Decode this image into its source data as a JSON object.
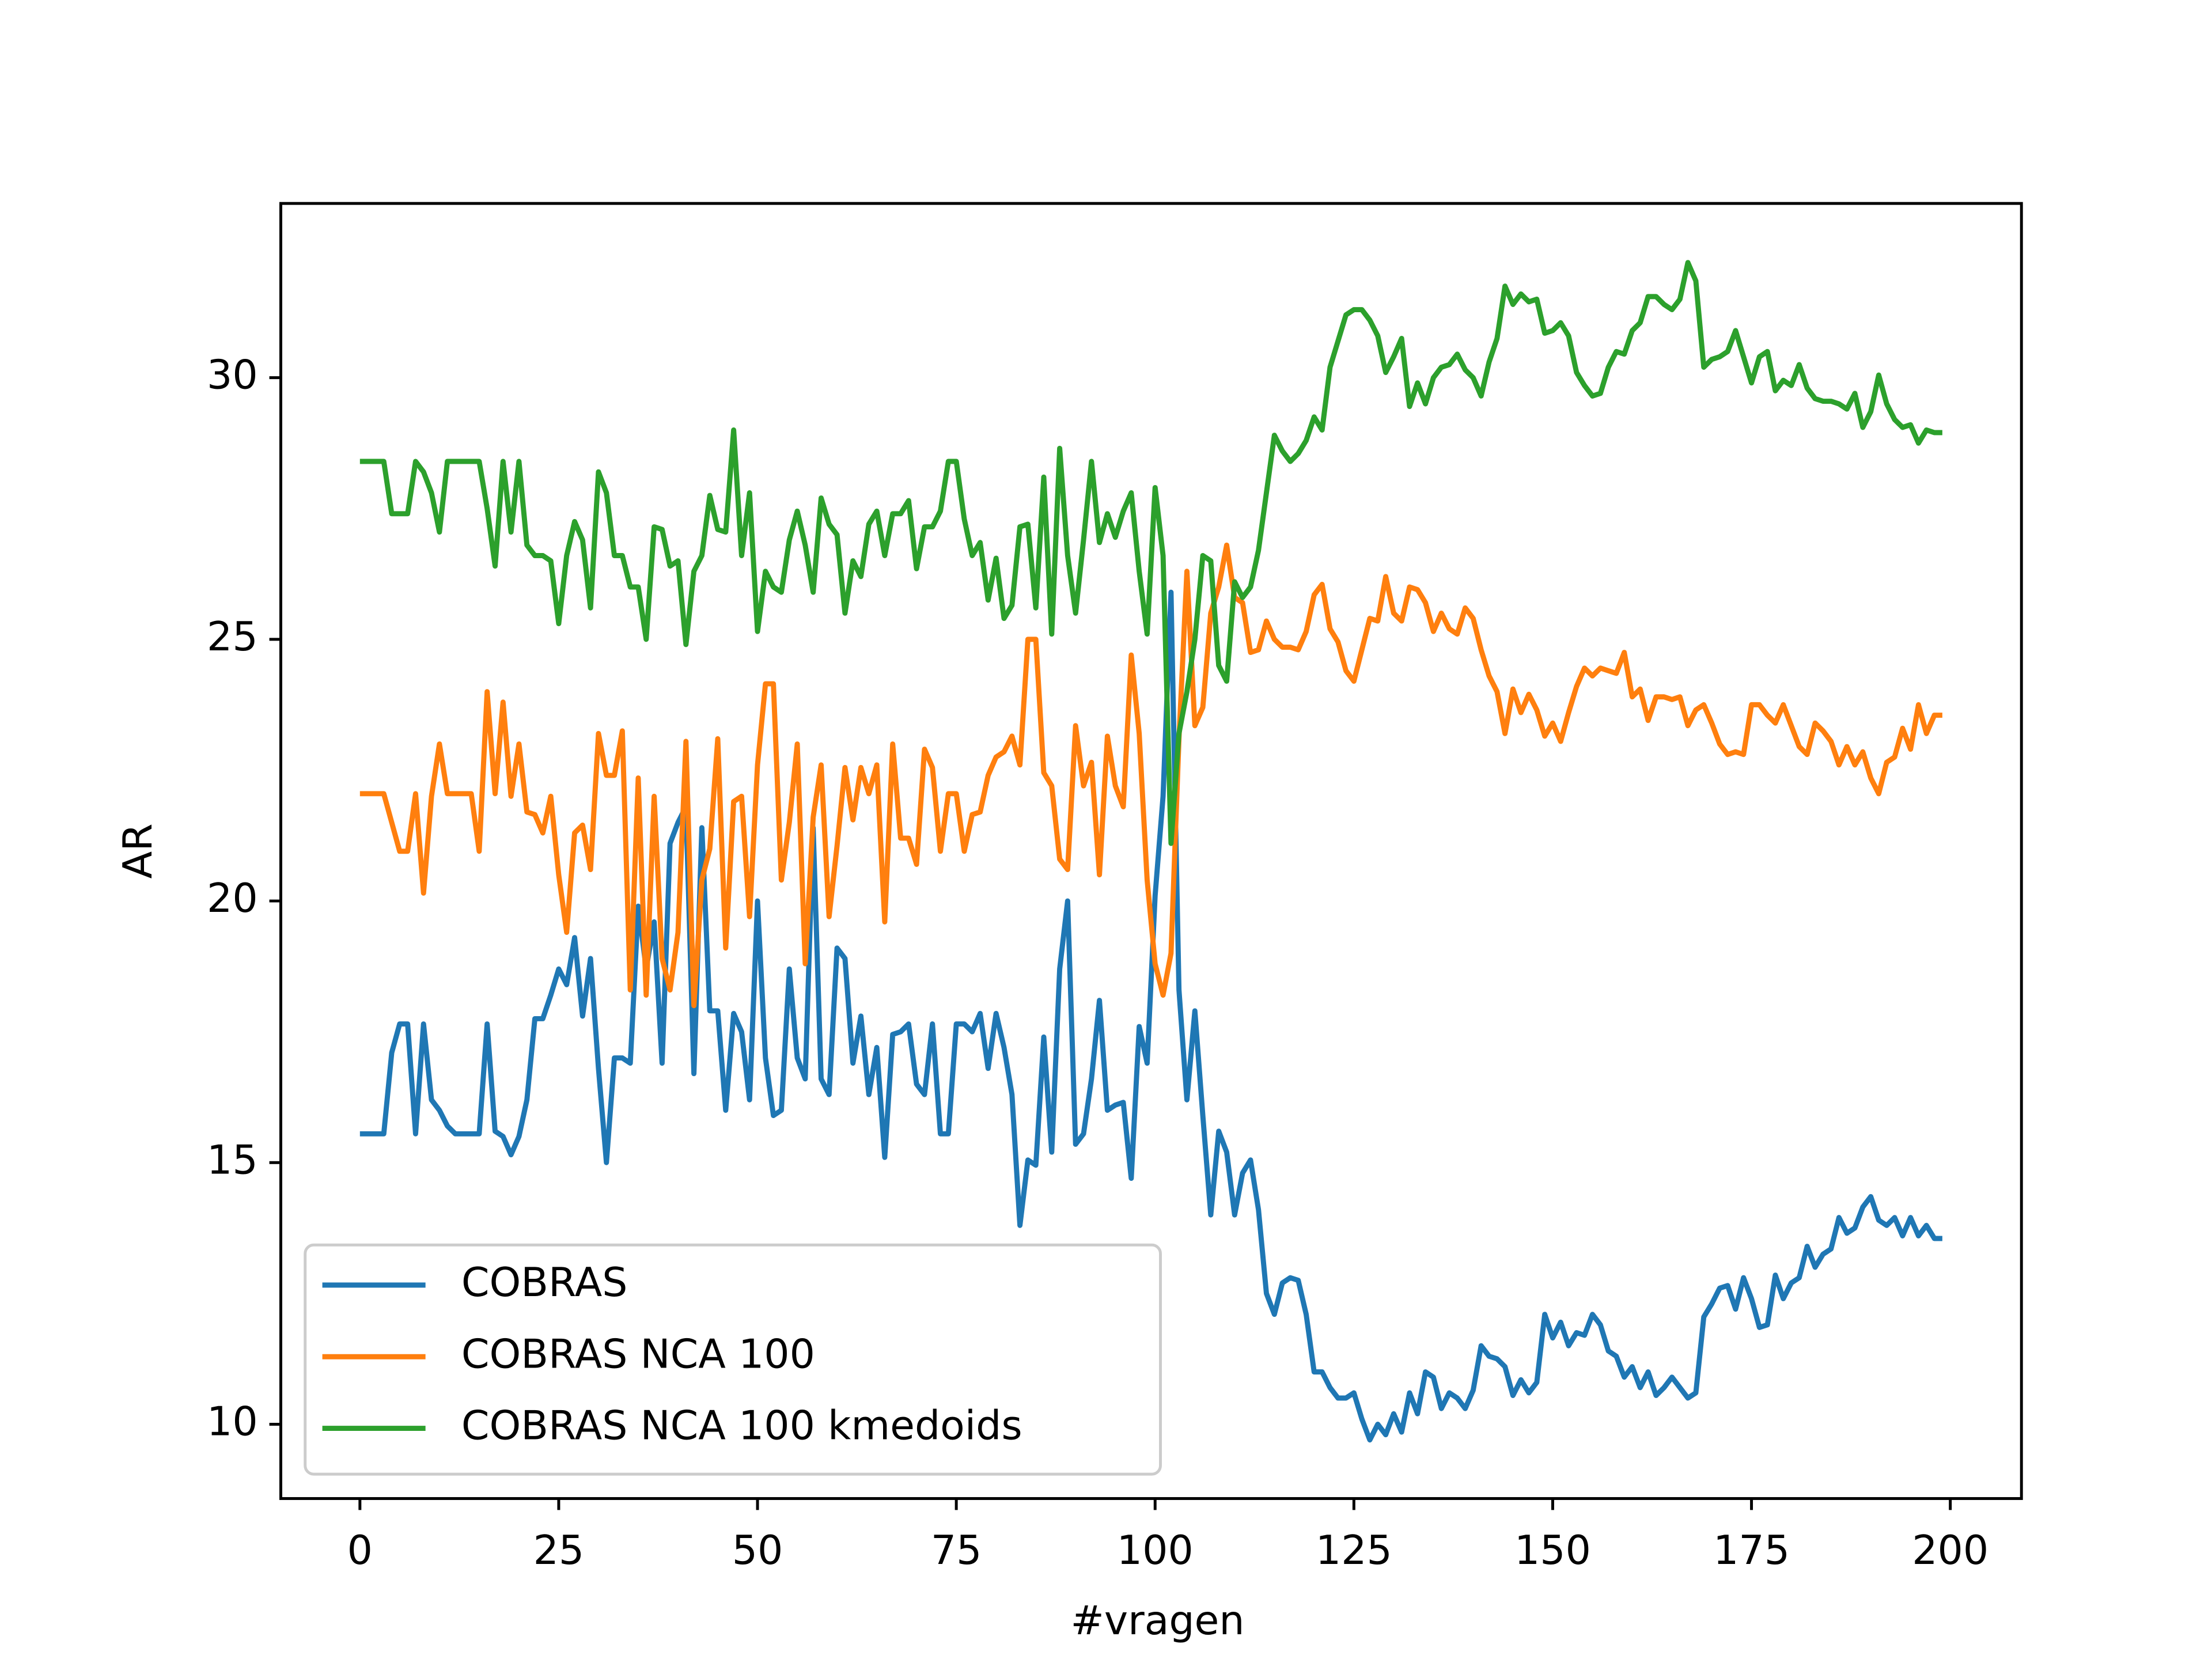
{
  "chart_data": {
    "type": "line",
    "xlabel": "#vragen",
    "ylabel": "AR",
    "x": [
      0,
      1,
      2,
      3,
      4,
      5,
      6,
      7,
      8,
      9,
      10,
      11,
      12,
      13,
      14,
      15,
      16,
      17,
      18,
      19,
      20,
      21,
      22,
      23,
      24,
      25,
      26,
      27,
      28,
      29,
      30,
      31,
      32,
      33,
      34,
      35,
      36,
      37,
      38,
      39,
      40,
      41,
      42,
      43,
      44,
      45,
      46,
      47,
      48,
      49,
      50,
      51,
      52,
      53,
      54,
      55,
      56,
      57,
      58,
      59,
      60,
      61,
      62,
      63,
      64,
      65,
      66,
      67,
      68,
      69,
      70,
      71,
      72,
      73,
      74,
      75,
      76,
      77,
      78,
      79,
      80,
      81,
      82,
      83,
      84,
      85,
      86,
      87,
      88,
      89,
      90,
      91,
      92,
      93,
      94,
      95,
      96,
      97,
      98,
      99,
      100,
      101,
      102,
      103,
      104,
      105,
      106,
      107,
      108,
      109,
      110,
      111,
      112,
      113,
      114,
      115,
      116,
      117,
      118,
      119,
      120,
      121,
      122,
      123,
      124,
      125,
      126,
      127,
      128,
      129,
      130,
      131,
      132,
      133,
      134,
      135,
      136,
      137,
      138,
      139,
      140,
      141,
      142,
      143,
      144,
      145,
      146,
      147,
      148,
      149,
      150,
      151,
      152,
      153,
      154,
      155,
      156,
      157,
      158,
      159,
      160,
      161,
      162,
      163,
      164,
      165,
      166,
      167,
      168,
      169,
      170,
      171,
      172,
      173,
      174,
      175,
      176,
      177,
      178,
      179,
      180,
      181,
      182,
      183,
      184,
      185,
      186,
      187,
      188,
      189,
      190,
      191,
      192,
      193,
      194,
      195,
      196,
      197,
      198,
      199
    ],
    "series": [
      {
        "name": "COBRAS",
        "color": "#1f77b4",
        "values": [
          15.55,
          15.55,
          15.55,
          15.55,
          17.1,
          17.65,
          17.65,
          15.55,
          17.65,
          16.2,
          16.0,
          15.7,
          15.55,
          15.55,
          15.55,
          15.55,
          17.65,
          15.6,
          15.5,
          15.15,
          15.5,
          16.2,
          17.75,
          17.75,
          18.2,
          18.7,
          18.4,
          19.3,
          17.8,
          18.9,
          16.8,
          15.0,
          17.0,
          17.0,
          16.9,
          19.9,
          18.7,
          19.6,
          16.9,
          21.1,
          21.5,
          21.8,
          16.7,
          21.4,
          17.9,
          17.9,
          16.0,
          17.85,
          17.5,
          16.2,
          20.0,
          17.0,
          15.9,
          16.0,
          18.7,
          17.0,
          16.6,
          21.4,
          16.6,
          16.3,
          19.1,
          18.9,
          16.9,
          17.8,
          16.3,
          17.2,
          15.1,
          17.45,
          17.5,
          17.65,
          16.5,
          16.3,
          17.65,
          15.55,
          15.55,
          17.65,
          17.65,
          17.5,
          17.85,
          16.8,
          17.85,
          17.2,
          16.3,
          13.8,
          15.05,
          14.95,
          17.4,
          15.2,
          18.7,
          20.0,
          15.35,
          15.55,
          16.6,
          18.1,
          16.0,
          16.1,
          16.15,
          14.7,
          17.6,
          16.9,
          20.1,
          22.0,
          25.9,
          18.3,
          16.2,
          17.9,
          15.9,
          14.0,
          15.6,
          15.2,
          14.0,
          14.8,
          15.05,
          14.1,
          12.5,
          12.1,
          12.7,
          12.8,
          12.75,
          12.1,
          11.0,
          11.0,
          10.7,
          10.5,
          10.5,
          10.6,
          10.1,
          9.7,
          10.0,
          9.8,
          10.2,
          9.85,
          10.6,
          10.2,
          11.0,
          10.9,
          10.3,
          10.6,
          10.5,
          10.3,
          10.65,
          11.5,
          11.3,
          11.25,
          11.1,
          10.55,
          10.85,
          10.6,
          10.8,
          12.1,
          11.65,
          11.95,
          11.5,
          11.75,
          11.7,
          12.1,
          11.9,
          11.4,
          11.3,
          10.9,
          11.1,
          10.7,
          11.0,
          10.55,
          10.7,
          10.9,
          10.7,
          10.5,
          10.6,
          12.05,
          12.3,
          12.6,
          12.65,
          12.2,
          12.8,
          12.4,
          11.85,
          11.9,
          12.85,
          12.4,
          12.7,
          12.8,
          13.4,
          13.0,
          13.25,
          13.35,
          13.95,
          13.65,
          13.75,
          14.15,
          14.35,
          13.9,
          13.8,
          13.95,
          13.6,
          13.95,
          13.6,
          13.8,
          13.55,
          13.55
        ]
      },
      {
        "name": "COBRAS NCA 100",
        "color": "#ff7f0e",
        "values": [
          22.05,
          22.05,
          22.05,
          22.05,
          21.5,
          20.95,
          20.95,
          22.05,
          20.15,
          22.0,
          23.0,
          22.05,
          22.05,
          22.05,
          22.05,
          20.95,
          24.0,
          22.05,
          23.8,
          22.0,
          23.0,
          21.7,
          21.65,
          21.3,
          22.0,
          20.5,
          19.4,
          21.3,
          21.45,
          20.6,
          23.2,
          22.4,
          22.4,
          23.25,
          18.3,
          22.35,
          18.2,
          22.0,
          18.9,
          18.3,
          19.4,
          23.05,
          18.0,
          20.4,
          21.0,
          23.1,
          19.1,
          21.9,
          22.0,
          19.7,
          22.6,
          24.15,
          24.15,
          20.4,
          21.5,
          23.0,
          18.8,
          21.6,
          22.6,
          19.7,
          21.05,
          22.55,
          21.55,
          22.55,
          22.05,
          22.6,
          19.6,
          23.0,
          21.2,
          21.2,
          20.7,
          22.9,
          22.55,
          20.95,
          22.05,
          22.05,
          20.95,
          21.65,
          21.7,
          22.4,
          22.75,
          22.85,
          23.15,
          22.6,
          25.0,
          25.0,
          22.45,
          22.2,
          20.8,
          20.6,
          23.35,
          22.2,
          22.65,
          20.5,
          23.15,
          22.2,
          21.8,
          24.7,
          23.2,
          20.4,
          18.8,
          18.2,
          19.0,
          23.1,
          26.3,
          23.35,
          23.7,
          25.5,
          26.0,
          26.8,
          25.8,
          25.7,
          24.75,
          24.8,
          25.35,
          25.0,
          24.85,
          24.85,
          24.8,
          25.15,
          25.85,
          26.05,
          25.2,
          24.95,
          24.4,
          24.2,
          24.8,
          25.4,
          25.35,
          26.2,
          25.5,
          25.35,
          26.0,
          25.95,
          25.7,
          25.15,
          25.5,
          25.2,
          25.1,
          25.6,
          25.4,
          24.8,
          24.3,
          24.0,
          23.2,
          24.05,
          23.6,
          23.95,
          23.65,
          23.15,
          23.4,
          23.05,
          23.6,
          24.1,
          24.45,
          24.3,
          24.45,
          24.4,
          24.35,
          24.75,
          23.9,
          24.05,
          23.45,
          23.9,
          23.9,
          23.85,
          23.9,
          23.35,
          23.65,
          23.75,
          23.4,
          23.0,
          22.8,
          22.85,
          22.8,
          23.75,
          23.75,
          23.55,
          23.4,
          23.75,
          23.35,
          22.95,
          22.8,
          23.4,
          23.25,
          23.05,
          22.6,
          22.95,
          22.6,
          22.85,
          22.35,
          22.05,
          22.65,
          22.75,
          23.3,
          22.9,
          23.75,
          23.2,
          23.55,
          23.55
        ]
      },
      {
        "name": "COBRAS NCA 100 kmedoids",
        "color": "#2ca02c",
        "values": [
          28.4,
          28.4,
          28.4,
          28.4,
          27.4,
          27.4,
          27.4,
          28.4,
          28.2,
          27.8,
          27.05,
          28.4,
          28.4,
          28.4,
          28.4,
          28.4,
          27.5,
          26.4,
          28.4,
          27.05,
          28.4,
          26.8,
          26.6,
          26.6,
          26.5,
          25.3,
          26.6,
          27.25,
          26.9,
          25.6,
          28.2,
          27.8,
          26.6,
          26.6,
          26.0,
          26.0,
          25.0,
          27.15,
          27.1,
          26.4,
          26.5,
          24.9,
          26.3,
          26.6,
          27.75,
          27.1,
          27.05,
          29.0,
          26.6,
          27.8,
          25.15,
          26.3,
          26.0,
          25.9,
          26.9,
          27.45,
          26.8,
          25.9,
          27.7,
          27.2,
          27.0,
          25.5,
          26.5,
          26.2,
          27.2,
          27.45,
          26.6,
          27.4,
          27.4,
          27.65,
          26.35,
          27.15,
          27.15,
          27.45,
          28.4,
          28.4,
          27.3,
          26.6,
          26.85,
          25.75,
          26.55,
          25.4,
          25.65,
          27.15,
          27.2,
          25.6,
          28.1,
          25.1,
          28.65,
          26.6,
          25.5,
          26.9,
          28.4,
          26.85,
          27.4,
          26.95,
          27.45,
          27.8,
          26.3,
          25.1,
          27.9,
          26.6,
          21.1,
          23.2,
          24.0,
          25.0,
          26.6,
          26.5,
          24.5,
          24.2,
          26.1,
          25.8,
          26.0,
          26.7,
          27.8,
          28.9,
          28.6,
          28.4,
          28.55,
          28.8,
          29.25,
          29.0,
          30.2,
          30.7,
          31.2,
          31.3,
          31.3,
          31.1,
          30.8,
          30.1,
          30.4,
          30.75,
          29.45,
          29.9,
          29.5,
          30.0,
          30.2,
          30.25,
          30.45,
          30.15,
          30.0,
          29.65,
          30.3,
          30.75,
          31.75,
          31.4,
          31.6,
          31.45,
          31.5,
          30.85,
          30.9,
          31.05,
          30.8,
          30.1,
          29.85,
          29.65,
          29.7,
          30.2,
          30.5,
          30.45,
          30.9,
          31.05,
          31.55,
          31.55,
          31.4,
          31.3,
          31.5,
          32.2,
          31.85,
          30.2,
          30.35,
          30.4,
          30.5,
          30.9,
          30.4,
          29.9,
          30.4,
          30.5,
          29.75,
          29.95,
          29.85,
          30.25,
          29.8,
          29.6,
          29.55,
          29.55,
          29.5,
          29.4,
          29.7,
          29.05,
          29.35,
          30.05,
          29.5,
          29.2,
          29.05,
          29.1,
          28.75,
          29.0,
          28.95,
          28.95
        ]
      }
    ],
    "xlim": [
      -9.95,
      208.95
    ],
    "ylim": [
      8.58,
      33.33
    ],
    "xticks": [
      0,
      25,
      50,
      75,
      100,
      125,
      150,
      175,
      200
    ],
    "yticks": [
      10,
      15,
      20,
      25,
      30
    ],
    "grid": false,
    "legend": "lower left"
  }
}
